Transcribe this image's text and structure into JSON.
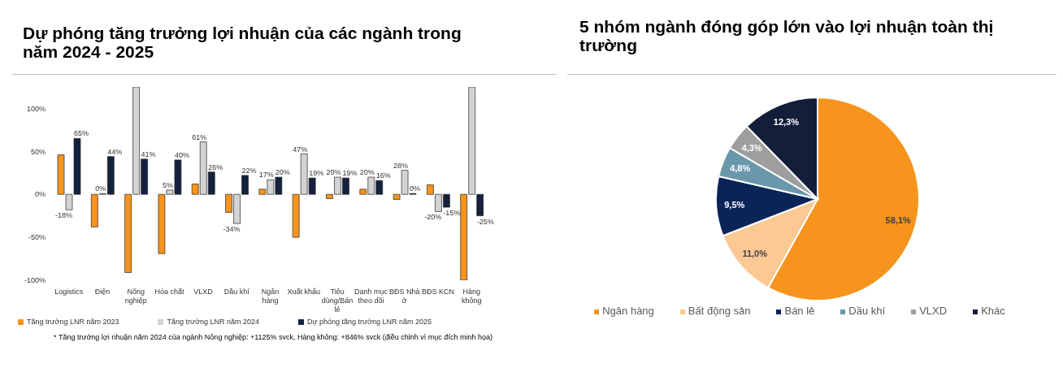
{
  "chart_data": [
    {
      "type": "bar",
      "title": "Dự phóng tăng trưởng lợi nhuận của các ngành trong năm 2024 - 2025",
      "categories": [
        "Logistics",
        "Điện",
        "Nông nghiệp",
        "Hóa chất",
        "VLXD",
        "Dầu khí",
        "Ngân hàng",
        "Xuất khẩu",
        "Tiêu dùng/Bán lẻ",
        "Danh mục theo dõi",
        "BĐS Nhà ở",
        "BĐS KCN",
        "Hàng không"
      ],
      "series": [
        {
          "name": "Tăng trưởng LNR năm 2023",
          "color": "#f7941d",
          "values": [
            46,
            -38,
            -91,
            -69,
            12,
            -21,
            6,
            -50,
            -5,
            6,
            -6,
            11,
            -100
          ]
        },
        {
          "name": "Tăng trưởng LNR năm 2024",
          "color": "#d3d3d3",
          "values": [
            -18,
            0,
            125,
            5,
            61,
            -34,
            17,
            47,
            20,
            20,
            28,
            -20,
            125
          ],
          "value_labels": [
            "-18%",
            "0%",
            null,
            "5%",
            "61%",
            "-34%",
            "17%",
            "47%",
            "20%",
            "20%",
            "28%",
            "-20%",
            null
          ]
        },
        {
          "name": "Dự phóng tăng trưởng LNR năm 2025",
          "color": "#14213d",
          "values": [
            65,
            44,
            41,
            40,
            26,
            22,
            20,
            19,
            19,
            16,
            0,
            -15,
            -25
          ],
          "value_labels": [
            "65%",
            "44%",
            "41%",
            "40%",
            "26%",
            "22%",
            "20%",
            "19%",
            "19%",
            "16%",
            "0%",
            "-15%",
            "-25%"
          ]
        }
      ],
      "ylim": [
        -100,
        125
      ],
      "yticks": [
        {
          "value": -100,
          "label": "-100%"
        },
        {
          "value": -50,
          "label": "-50%"
        },
        {
          "value": 0,
          "label": "0%"
        },
        {
          "value": 50,
          "label": "50%"
        },
        {
          "value": 100,
          "label": "100%"
        }
      ],
      "legend": "bottom",
      "annotations": [
        "* Tăng trưởng lợi nhuận năm 2024 của ngành Nông nghiệp: +1125% svck, Hàng không: +846% svck (điều chỉnh vì mục đích minh họa)"
      ]
    },
    {
      "type": "pie",
      "title": "5 nhóm ngành đóng góp lớn vào lợi nhuận toàn thị trường",
      "categories": [
        "Ngân hàng",
        "Bất động sản",
        "Bán lẻ",
        "Dầu khí",
        "VLXD",
        "Khác"
      ],
      "values": [
        58.1,
        11.0,
        9.5,
        4.8,
        4.3,
        12.3
      ],
      "colors": [
        "#f7941d",
        "#fcc893",
        "#0a2457",
        "#6b97ab",
        "#9e9e9e",
        "#131f3a"
      ],
      "value_labels": [
        "58,1%",
        "11,0%",
        "9,5%",
        "4,8%",
        "4,3%",
        "12,3%"
      ],
      "legend": "bottom"
    }
  ]
}
